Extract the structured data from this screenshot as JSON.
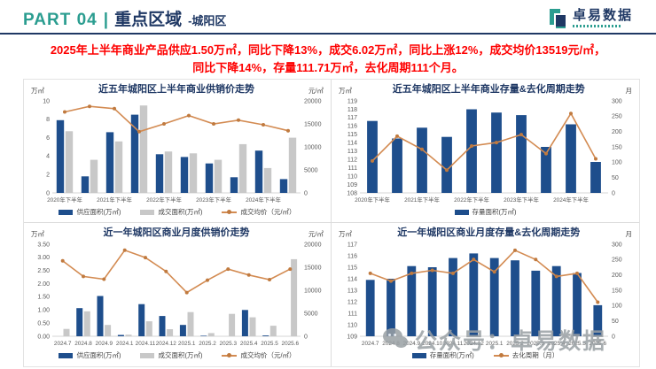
{
  "header": {
    "part": "PART 04",
    "separator": "|",
    "title": "重点区域",
    "subtitle": "-城阳区",
    "logo_text": "卓易数据"
  },
  "summary": {
    "line1": "2025年上半年商业产品供应1.50万㎡，同比下降13%，成交6.02万㎡，同比上涨12%，成交均价13519元/㎡，",
    "line2": "同比下降14%，存量111.71万㎡，去化周期111个月。"
  },
  "watermark": {
    "text": "公众号：卓易数据"
  },
  "colors": {
    "bar_blue": "#1e4e8c",
    "bar_gray": "#c8c8c8",
    "line_orange": "#d38b52",
    "line_marker": "#c07a3f",
    "navy": "#1f3864",
    "teal": "#2b9d90",
    "red": "#fe0000"
  },
  "chart_data": [
    {
      "type": "bar+line",
      "title": "近五年城阳区上半年商业供销价走势",
      "left_unit": "万㎡",
      "right_unit": "元/㎡",
      "left_axis": {
        "min": 0,
        "max": 10,
        "step": 2,
        "decimals": 0
      },
      "right_axis": {
        "min": 0,
        "max": 20000,
        "step": 5000,
        "decimals": 0
      },
      "categories": [
        "2020年下半年",
        "",
        "2021年下半年",
        "",
        "2022年下半年",
        "",
        "2023年下半年",
        "",
        "2024年下半年",
        ""
      ],
      "bars": [
        {
          "label": "供应面积(万㎡)",
          "values": [
            7.9,
            1.8,
            6.6,
            8.5,
            4.2,
            3.9,
            3.2,
            1.7,
            4.6,
            1.5
          ]
        },
        {
          "label": "成交面积(万㎡)",
          "values": [
            6.7,
            3.6,
            5.6,
            9.5,
            4.5,
            4.3,
            3.6,
            5.3,
            2.7,
            6.0
          ]
        }
      ],
      "line": {
        "label": "成交均价（元/㎡）",
        "values": [
          17600,
          18800,
          18300,
          13300,
          15000,
          16800,
          15000,
          15800,
          14800,
          13519
        ],
        "in_legend": true
      }
    },
    {
      "type": "bar+line",
      "title": "近五年城阳区上半年商业存量&去化周期走势",
      "left_unit": "万㎡",
      "right_unit": "月",
      "left_axis": {
        "min": 108,
        "max": 119,
        "step": 1,
        "decimals": 0
      },
      "right_axis": {
        "min": 0,
        "max": 300,
        "step": 50,
        "decimals": 0
      },
      "categories": [
        "2020年下半年",
        "",
        "2021年下半年",
        "",
        "2022年下半年",
        "",
        "2023年下半年",
        "",
        "2024年下半年",
        ""
      ],
      "bars": [
        {
          "label": "存量面积(万㎡)",
          "values": [
            116.6,
            114.5,
            115.8,
            114.7,
            118.0,
            117.6,
            117.3,
            113.5,
            116.2,
            111.7
          ]
        }
      ],
      "line": {
        "label": "去化周期（月）",
        "values": [
          104,
          185,
          142,
          74,
          153,
          164,
          190,
          128,
          259,
          111
        ],
        "in_legend": false
      }
    },
    {
      "type": "bar+line",
      "title": "近一年城阳区商业月度供销价走势",
      "left_unit": "万㎡",
      "right_unit": "元/㎡",
      "left_axis": {
        "min": 0,
        "max": 3.5,
        "step": 0.5,
        "decimals": 2
      },
      "right_axis": {
        "min": 0,
        "max": 20000,
        "step": 5000,
        "decimals": 0
      },
      "categories": [
        "2024.7",
        "2024.8",
        "2024.9",
        "2024.1",
        "2024.11",
        "2024.12",
        "2025.1",
        "2025.2",
        "2025.3",
        "2025.4",
        "2025.5",
        "2025.6"
      ],
      "bars": [
        {
          "label": "供应面积(万㎡)",
          "values": [
            0,
            1.07,
            1.53,
            0.05,
            1.22,
            0.77,
            0.43,
            0.02,
            0,
            1.0,
            0.03,
            0
          ]
        },
        {
          "label": "成交面积(万㎡)",
          "values": [
            0.28,
            0.95,
            0.43,
            0.06,
            0.57,
            0.27,
            0.92,
            0.12,
            0.85,
            0.72,
            0.4,
            2.93
          ]
        }
      ],
      "line": {
        "label": "成交均价（元/㎡）",
        "values": [
          16400,
          13000,
          12400,
          18700,
          17100,
          14100,
          9500,
          12200,
          14600,
          13300,
          12300,
          14600
        ],
        "in_legend": true
      }
    },
    {
      "type": "bar+line",
      "title": "近一年城阳区商业月度存量&去化周期走势",
      "left_unit": "万㎡",
      "right_unit": "月",
      "left_axis": {
        "min": 109,
        "max": 117,
        "step": 1,
        "decimals": 0
      },
      "right_axis": {
        "min": 0,
        "max": 300,
        "step": 50,
        "decimals": 0
      },
      "categories": [
        "2024.7",
        "2024.8",
        "2024.9",
        "2024.10",
        "2024.11",
        "2024.12",
        "2025.1",
        "2025.2",
        "2025.3",
        "2025.4",
        "2025.5",
        "2025.6"
      ],
      "bars": [
        {
          "label": "存量面积(万㎡)",
          "values": [
            113.9,
            114.0,
            115.1,
            115.0,
            115.8,
            116.2,
            115.8,
            115.6,
            114.7,
            115.1,
            114.5,
            111.7
          ]
        }
      ],
      "line": {
        "label": "去化周期（月）",
        "values": [
          205,
          180,
          205,
          215,
          205,
          250,
          210,
          280,
          250,
          195,
          205,
          111
        ],
        "in_legend": true
      }
    }
  ]
}
